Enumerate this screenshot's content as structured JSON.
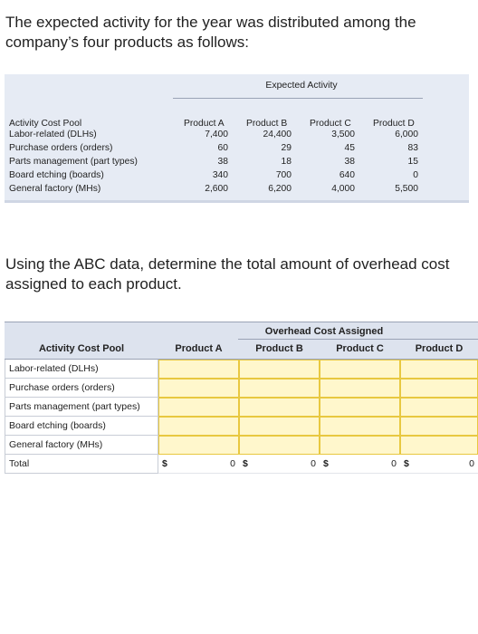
{
  "intro_text": "The expected activity for the year was distributed among the company’s four products as follows:",
  "table1": {
    "group_header": "Expected Activity",
    "columns": [
      "Activity Cost Pool",
      "Product A",
      "Product B",
      "Product C",
      "Product D"
    ],
    "rows": [
      [
        "Labor-related (DLHs)",
        "7,400",
        "24,400",
        "3,500",
        "6,000"
      ],
      [
        "Purchase orders (orders)",
        "60",
        "29",
        "45",
        "83"
      ],
      [
        "Parts management (part types)",
        "38",
        "18",
        "38",
        "15"
      ],
      [
        "Board etching (boards)",
        "340",
        "700",
        "640",
        "0"
      ],
      [
        "General factory (MHs)",
        "2,600",
        "6,200",
        "4,000",
        "5,500"
      ]
    ]
  },
  "question_text": "Using the ABC data, determine the total amount of overhead cost assigned to each product.",
  "table2": {
    "group_header": "Overhead Cost Assigned",
    "columns": [
      "Activity Cost Pool",
      "Product A",
      "Product B",
      "Product C",
      "Product D"
    ],
    "rows": [
      "Labor-related (DLHs)",
      "Purchase orders (orders)",
      "Parts management (part types)",
      "Board etching (boards)",
      "General factory (MHs)"
    ],
    "total_label": "Total",
    "currency_symbol": "$",
    "totals": [
      "0",
      "0",
      "0",
      "0"
    ]
  },
  "colors": {
    "table1_bg": "#e6ebf4",
    "table2_header_bg": "#dde3ee",
    "input_fill": "#fff7cc",
    "input_border": "#e8c840"
  }
}
